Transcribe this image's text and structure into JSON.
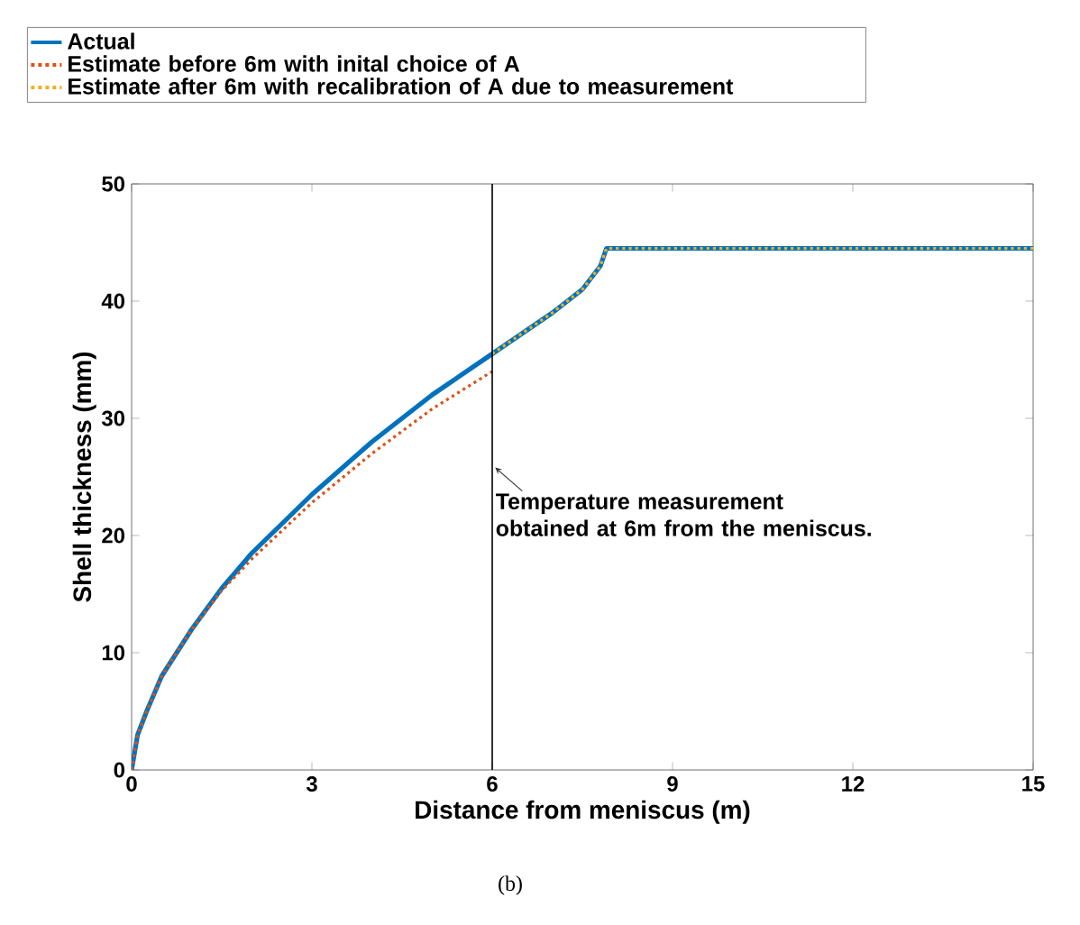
{
  "chart_data": {
    "type": "line",
    "xlabel": "Distance from meniscus (m)",
    "ylabel": "Shell thickness (mm)",
    "xlim": [
      0,
      15
    ],
    "ylim": [
      0,
      50
    ],
    "xticks": [
      0,
      3,
      6,
      9,
      12,
      15
    ],
    "yticks": [
      0,
      10,
      20,
      30,
      40,
      50
    ],
    "grid": false,
    "legend": "top",
    "series": [
      {
        "name": "Actual",
        "color": "#0072bd",
        "line_style": "solid",
        "x": [
          0,
          0.1,
          0.25,
          0.5,
          1,
          1.5,
          2,
          3,
          4,
          5,
          6,
          7,
          7.5,
          7.8,
          7.9,
          15
        ],
        "values": [
          0,
          3,
          5,
          8,
          12,
          15.5,
          18.5,
          23.5,
          28,
          32,
          35.5,
          39,
          41,
          43,
          44.5,
          44.5
        ]
      },
      {
        "name": "Estimate before 6m with inital choice of A",
        "color": "#d95319",
        "line_style": "dotted",
        "x": [
          0,
          0.1,
          0.25,
          0.5,
          1,
          1.5,
          2,
          3,
          4,
          5,
          6
        ],
        "values": [
          0,
          3,
          5,
          8,
          12,
          15.3,
          18,
          22.8,
          27,
          30.8,
          34
        ]
      },
      {
        "name": "Estimate after 6m with recalibration of A due to measurement",
        "color": "#edb120",
        "line_style": "dotted",
        "x": [
          6,
          7,
          7.5,
          7.8,
          7.9,
          15
        ],
        "values": [
          35.5,
          39,
          41,
          43,
          44.5,
          44.5
        ]
      }
    ],
    "ref_lines": [
      {
        "axis": "x",
        "value": 6,
        "label": "Temperature measurement obtained at 6m from the meniscus.",
        "color": "#000000"
      }
    ],
    "annotations": [
      "(b)"
    ]
  }
}
